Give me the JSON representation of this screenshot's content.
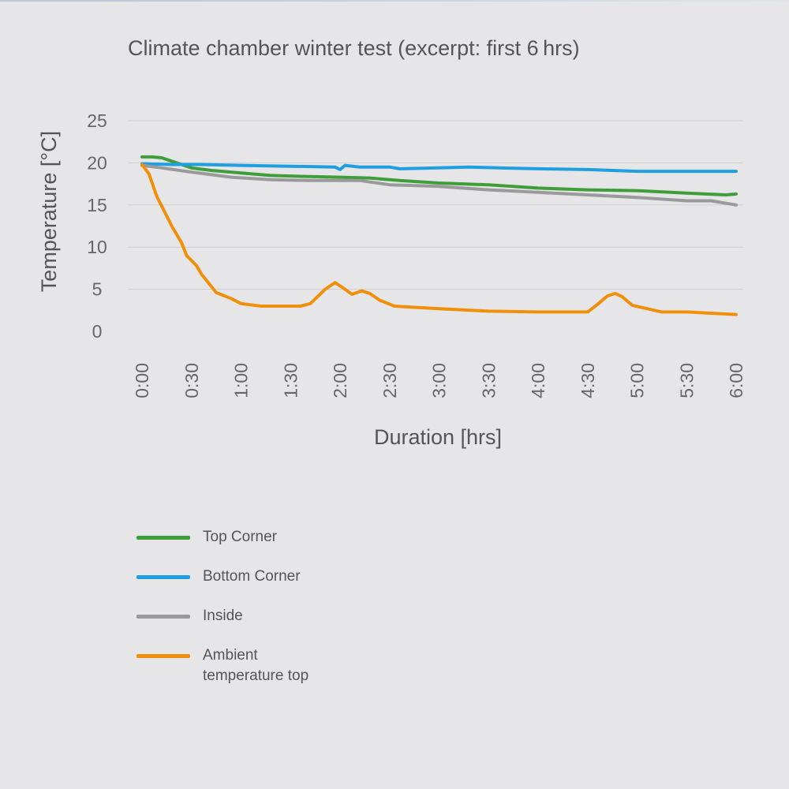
{
  "chart_data": {
    "type": "line",
    "title": "Climate chamber winter test (excerpt: first 6 hrs)",
    "xlabel": "Duration [hrs]",
    "ylabel": "Temperature [°C]",
    "xlim": [
      0,
      6
    ],
    "ylim": [
      0,
      25
    ],
    "yticks": [
      0,
      5,
      10,
      15,
      20,
      25
    ],
    "xticks": [
      0,
      0.5,
      1,
      1.5,
      2,
      2.5,
      3,
      3.5,
      4,
      4.5,
      5,
      5.5,
      6
    ],
    "xtick_labels": [
      "0:00",
      "0:30",
      "1:00",
      "1:30",
      "2:00",
      "2:30",
      "3:00",
      "3:30",
      "4:00",
      "4:30",
      "5:00",
      "5:30",
      "6:00"
    ],
    "grid": "horizontal",
    "legend_position": "bottom-left",
    "series": [
      {
        "name": "Top Corner",
        "color": "#3f9e3a",
        "points": [
          [
            0,
            20.7
          ],
          [
            0.1,
            20.7
          ],
          [
            0.2,
            20.6
          ],
          [
            0.3,
            20.2
          ],
          [
            0.5,
            19.4
          ],
          [
            0.7,
            19.1
          ],
          [
            1.0,
            18.8
          ],
          [
            1.3,
            18.5
          ],
          [
            1.6,
            18.4
          ],
          [
            2.0,
            18.3
          ],
          [
            2.3,
            18.2
          ],
          [
            2.6,
            17.9
          ],
          [
            3.0,
            17.6
          ],
          [
            3.5,
            17.4
          ],
          [
            4.0,
            17.0
          ],
          [
            4.5,
            16.8
          ],
          [
            5.0,
            16.7
          ],
          [
            5.5,
            16.4
          ],
          [
            5.9,
            16.2
          ],
          [
            6.0,
            16.3
          ]
        ]
      },
      {
        "name": "Bottom Corner",
        "color": "#1f9fe0",
        "points": [
          [
            0,
            19.9
          ],
          [
            0.3,
            19.8
          ],
          [
            0.6,
            19.8
          ],
          [
            1.0,
            19.7
          ],
          [
            1.5,
            19.6
          ],
          [
            1.95,
            19.5
          ],
          [
            2.0,
            19.2
          ],
          [
            2.05,
            19.7
          ],
          [
            2.2,
            19.5
          ],
          [
            2.5,
            19.5
          ],
          [
            2.6,
            19.3
          ],
          [
            3.0,
            19.4
          ],
          [
            3.3,
            19.5
          ],
          [
            3.6,
            19.4
          ],
          [
            4.0,
            19.3
          ],
          [
            4.5,
            19.2
          ],
          [
            5.0,
            19.0
          ],
          [
            5.5,
            19.0
          ],
          [
            6.0,
            19.0
          ]
        ]
      },
      {
        "name": "Inside",
        "color": "#9a9a9a",
        "points": [
          [
            0,
            19.7
          ],
          [
            0.2,
            19.4
          ],
          [
            0.5,
            18.9
          ],
          [
            0.9,
            18.3
          ],
          [
            1.3,
            18.0
          ],
          [
            1.7,
            17.9
          ],
          [
            2.2,
            17.9
          ],
          [
            2.5,
            17.4
          ],
          [
            3.0,
            17.2
          ],
          [
            3.5,
            16.8
          ],
          [
            4.0,
            16.5
          ],
          [
            4.5,
            16.2
          ],
          [
            5.0,
            15.9
          ],
          [
            5.5,
            15.5
          ],
          [
            5.75,
            15.5
          ],
          [
            6.0,
            15.0
          ]
        ]
      },
      {
        "name": "Ambient temperature top",
        "color": "#f0900a",
        "points": [
          [
            0,
            19.8
          ],
          [
            0.07,
            18.7
          ],
          [
            0.15,
            16.0
          ],
          [
            0.3,
            12.5
          ],
          [
            0.4,
            10.5
          ],
          [
            0.45,
            9.0
          ],
          [
            0.55,
            7.8
          ],
          [
            0.6,
            6.8
          ],
          [
            0.75,
            4.6
          ],
          [
            0.9,
            3.9
          ],
          [
            1.0,
            3.3
          ],
          [
            1.2,
            3.0
          ],
          [
            1.4,
            3.0
          ],
          [
            1.6,
            3.0
          ],
          [
            1.7,
            3.3
          ],
          [
            1.85,
            5.0
          ],
          [
            1.95,
            5.8
          ],
          [
            2.05,
            5.0
          ],
          [
            2.12,
            4.4
          ],
          [
            2.22,
            4.8
          ],
          [
            2.3,
            4.5
          ],
          [
            2.4,
            3.7
          ],
          [
            2.55,
            3.0
          ],
          [
            3.0,
            2.7
          ],
          [
            3.5,
            2.4
          ],
          [
            4.0,
            2.3
          ],
          [
            4.5,
            2.3
          ],
          [
            4.6,
            3.2
          ],
          [
            4.7,
            4.2
          ],
          [
            4.78,
            4.5
          ],
          [
            4.85,
            4.1
          ],
          [
            4.95,
            3.1
          ],
          [
            5.1,
            2.7
          ],
          [
            5.25,
            2.3
          ],
          [
            5.5,
            2.3
          ],
          [
            6.0,
            2.0
          ]
        ]
      }
    ]
  }
}
